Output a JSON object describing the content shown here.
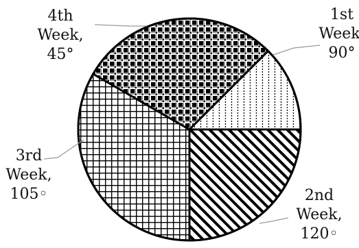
{
  "chart_data": {
    "type": "pie",
    "unit": "degrees",
    "slices": [
      {
        "name": "1st Week",
        "value": 90,
        "label_lines": [
          "1st",
          "Week,",
          "90°"
        ],
        "pattern": "diagonal-hatch"
      },
      {
        "name": "2nd Week",
        "value": 120,
        "label_lines": [
          "2nd",
          "Week,",
          "120◦"
        ],
        "pattern": "grid"
      },
      {
        "name": "3rd Week",
        "value": 105,
        "label_lines": [
          "3rd",
          "Week,",
          "105◦"
        ],
        "pattern": "checkerboard"
      },
      {
        "name": "4th Week",
        "value": 45,
        "label_lines": [
          "4th",
          "Week,",
          "45°"
        ],
        "pattern": "vertical-dots"
      }
    ],
    "start_direction": "east",
    "direction": "clockwise",
    "legend": "none",
    "grid": false
  }
}
